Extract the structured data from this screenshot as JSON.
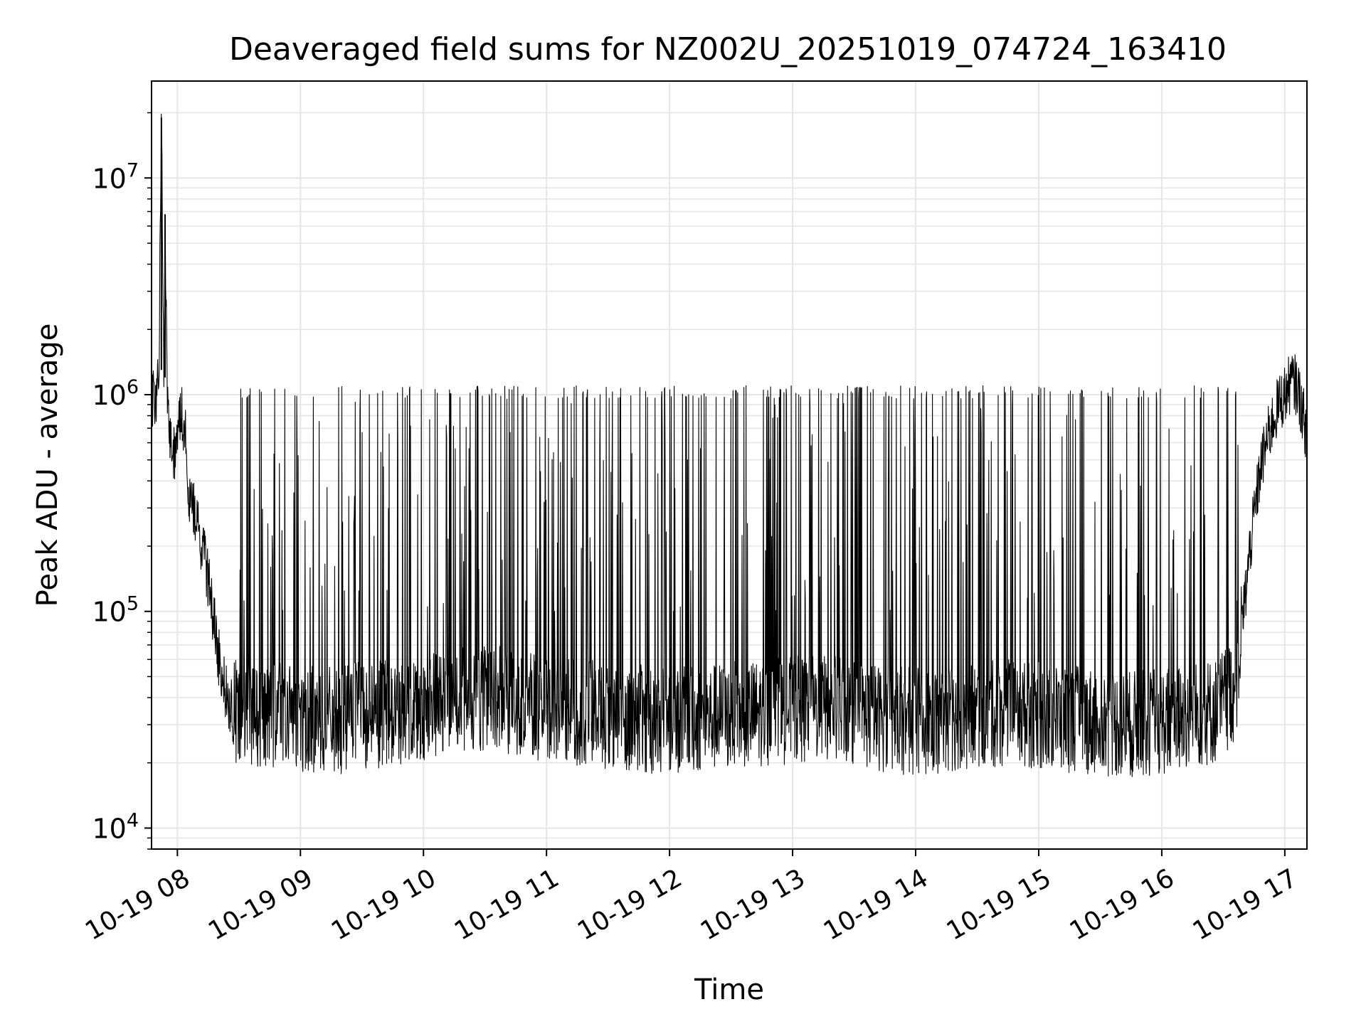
{
  "chart_data": {
    "type": "line",
    "title": "Deaveraged field sums for NZ002U_20251019_074724_163410",
    "xlabel": "Time",
    "ylabel": "Peak ADU - average",
    "yscale": "log",
    "ylim": [
      8000,
      28000000
    ],
    "xlim_hours": [
      7.79,
      17.18
    ],
    "grid": true,
    "line_color": "#000000",
    "grid_color": "#e6e6e6",
    "x_ticks": [
      {
        "hour": 8,
        "label": "10-19 08"
      },
      {
        "hour": 9,
        "label": "10-19 09"
      },
      {
        "hour": 10,
        "label": "10-19 10"
      },
      {
        "hour": 11,
        "label": "10-19 11"
      },
      {
        "hour": 12,
        "label": "10-19 12"
      },
      {
        "hour": 13,
        "label": "10-19 13"
      },
      {
        "hour": 14,
        "label": "10-19 14"
      },
      {
        "hour": 15,
        "label": "10-19 15"
      },
      {
        "hour": 16,
        "label": "10-19 16"
      },
      {
        "hour": 17,
        "label": "10-19 17"
      }
    ],
    "y_ticks": [
      {
        "value": 10000,
        "base": "10",
        "exp": "4"
      },
      {
        "value": 100000,
        "base": "10",
        "exp": "5"
      },
      {
        "value": 1000000,
        "base": "10",
        "exp": "6"
      },
      {
        "value": 10000000,
        "base": "10",
        "exp": "7"
      }
    ],
    "series": [
      {
        "name": "Peak ADU - average",
        "x_hours": [
          7.79,
          7.82,
          7.85,
          7.87,
          7.89,
          7.9,
          7.92,
          7.95,
          7.98,
          8.0,
          8.03,
          8.06,
          8.1,
          8.14,
          8.18,
          8.22,
          8.26,
          8.3,
          8.34,
          8.38,
          8.42,
          8.46,
          8.5,
          8.6,
          8.75,
          9.0,
          9.25,
          9.5,
          9.75,
          10.0,
          10.25,
          10.5,
          10.75,
          11.0,
          11.25,
          11.5,
          11.75,
          12.0,
          12.25,
          12.5,
          12.75,
          13.0,
          13.25,
          13.5,
          13.75,
          14.0,
          14.25,
          14.5,
          14.75,
          15.0,
          15.25,
          15.5,
          15.75,
          16.0,
          16.25,
          16.45,
          16.6,
          16.68,
          16.72,
          16.76,
          16.8,
          16.85,
          16.9,
          16.95,
          17.0,
          17.05,
          17.1,
          17.15,
          17.18
        ],
        "values": [
          1000000,
          900000,
          1300000,
          19000000,
          1200000,
          6800000,
          900000,
          600000,
          550000,
          650000,
          850000,
          700000,
          320000,
          280000,
          230000,
          180000,
          130000,
          90000,
          60000,
          45000,
          38000,
          36000,
          35000,
          34000,
          33000,
          32000,
          31000,
          33000,
          34000,
          36000,
          38000,
          40000,
          38000,
          36000,
          34000,
          33000,
          32000,
          31000,
          32000,
          33000,
          34000,
          35000,
          36000,
          34000,
          32000,
          31000,
          32000,
          33000,
          34000,
          33000,
          32000,
          31000,
          30000,
          31000,
          33000,
          35000,
          45000,
          120000,
          200000,
          300000,
          450000,
          600000,
          750000,
          900000,
          1000000,
          1150000,
          1100000,
          800000,
          650000
        ],
        "spike_upper_envelope": 1100000,
        "baseline_lower_envelope": 20000
      }
    ]
  }
}
